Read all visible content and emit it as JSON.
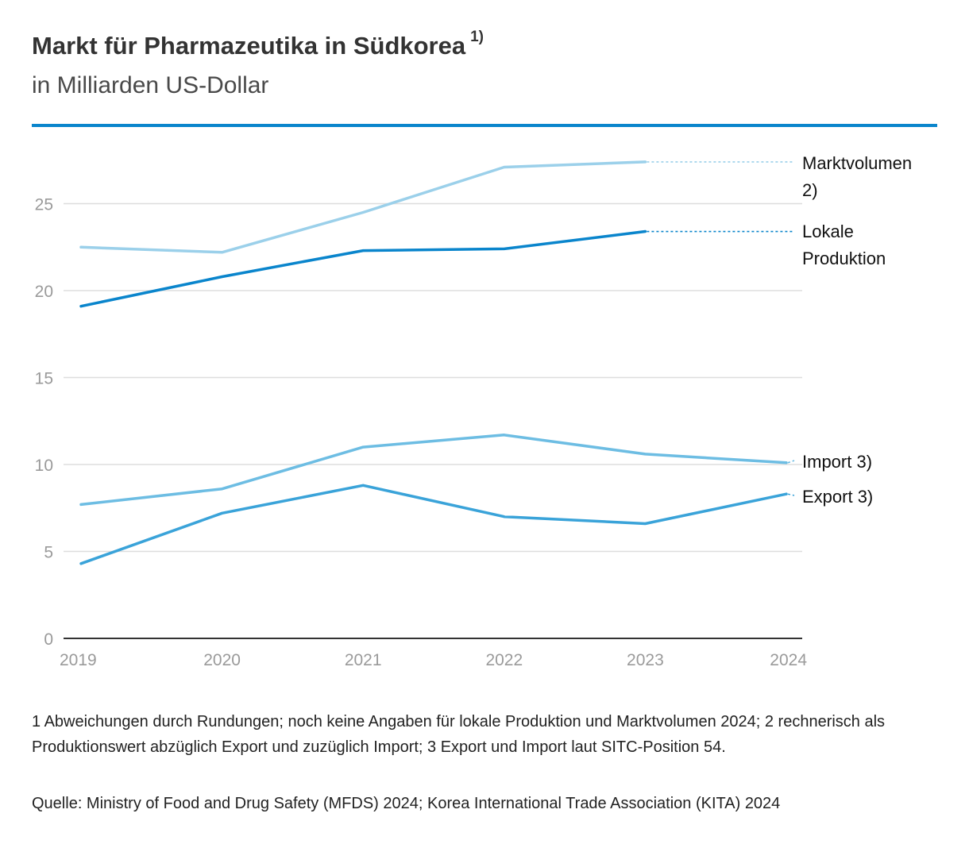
{
  "header": {
    "title": "Markt für Pharmazeutika in Südkorea",
    "title_note": "1)",
    "subtitle": "in Milliarden US-Dollar"
  },
  "colors": {
    "rule": "#0A85CC",
    "grid": "#DDDDDD",
    "axis": "#333333",
    "tick_label": "#9A9A9A",
    "series_label": "#111111"
  },
  "chart_data": {
    "type": "line",
    "title": "Markt für Pharmazeutika in Südkorea",
    "subtitle": "in Milliarden US-Dollar",
    "xlabel": "",
    "ylabel": "",
    "x": [
      "2019",
      "2020",
      "2021",
      "2022",
      "2023",
      "2024"
    ],
    "ylim": [
      0,
      27.5
    ],
    "yticks": [
      0,
      5,
      10,
      15,
      20,
      25
    ],
    "grid": true,
    "legend": "direct labels at right end of lines",
    "series": [
      {
        "name": "Marktvolumen 2)",
        "label_lines": [
          "Marktvolumen",
          "2)"
        ],
        "color": "#9BD0EA",
        "values": [
          22.5,
          22.2,
          24.5,
          27.1,
          27.4,
          null
        ]
      },
      {
        "name": "Lokale Produktion",
        "label_lines": [
          "Lokale",
          "Produktion"
        ],
        "color": "#0A85CC",
        "values": [
          19.1,
          20.8,
          22.3,
          22.4,
          23.4,
          null
        ]
      },
      {
        "name": "Import 3)",
        "label_lines": [
          "Import 3)"
        ],
        "color": "#6DBDE3",
        "values": [
          7.7,
          8.6,
          11.0,
          11.7,
          10.6,
          10.1
        ]
      },
      {
        "name": "Export 3)",
        "label_lines": [
          "Export 3)"
        ],
        "color": "#3AA3D9",
        "values": [
          4.3,
          7.2,
          8.8,
          7.0,
          6.6,
          8.3
        ]
      }
    ]
  },
  "footnote": "1 Abweichungen durch Rundungen; noch keine Angaben für lokale Produktion und Marktvolumen 2024; 2 rechnerisch als Produktionswert abzüglich Export und zuzüglich Import; 3 Export und Import laut SITC-Position 54.",
  "source": "Quelle: Ministry of Food and Drug Safety (MFDS) 2024; Korea International Trade Association (KITA) 2024"
}
